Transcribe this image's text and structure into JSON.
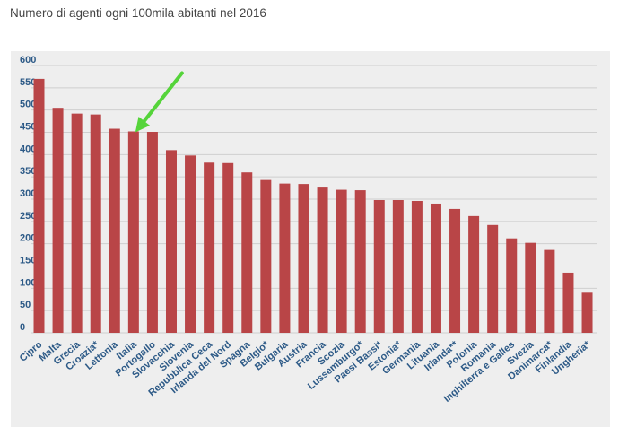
{
  "title": "Numero di agenti ogni 100mila abitanti nel 2016",
  "colors": {
    "bar": "#b94547",
    "arrow": "#55d43a",
    "grid": "#cfcfcf",
    "tick": "#2d5a87",
    "panel": "#eeeeee"
  },
  "chart_data": {
    "type": "bar",
    "title": "Numero di agenti ogni 100mila abitanti nel 2016",
    "xlabel": "",
    "ylabel": "",
    "ylim": [
      0,
      600
    ],
    "yticks": [
      0,
      50,
      100,
      150,
      200,
      250,
      300,
      350,
      400,
      450,
      500,
      550,
      600
    ],
    "grid": true,
    "categories": [
      "Cipro",
      "Malta",
      "Grecia",
      "Croazia*",
      "Lettonia",
      "Italia",
      "Portogallo",
      "Slovacchia",
      "Slovenia",
      "Repubblica Ceca",
      "Irlanda del Nord",
      "Spagna",
      "Belgio*",
      "Bulgaria",
      "Austria",
      "Francia",
      "Scozia",
      "Lussemburgo*",
      "Paesi Bassi*",
      "Estonia*",
      "Germania",
      "Lituania",
      "Irlanda**",
      "Polonia",
      "Romania",
      "Inghilterra e Galles",
      "Svezia",
      "Danimarca*",
      "Finlandia",
      "Ungheria*"
    ],
    "values": [
      570,
      505,
      492,
      490,
      458,
      452,
      451,
      410,
      398,
      382,
      381,
      360,
      343,
      335,
      334,
      326,
      321,
      320,
      298,
      298,
      296,
      290,
      278,
      262,
      242,
      212,
      202,
      186,
      135,
      90
    ],
    "annotations": [
      {
        "type": "arrow",
        "target_category": "Italia"
      }
    ]
  }
}
